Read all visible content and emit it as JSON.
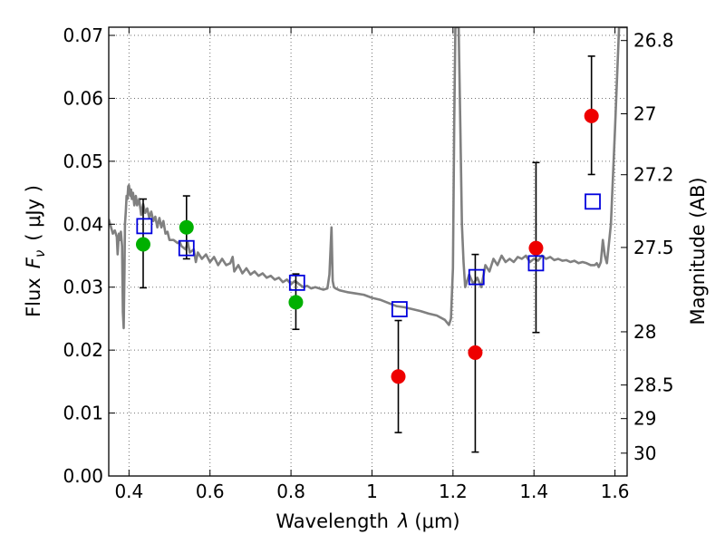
{
  "chart_data": {
    "type": "scatter",
    "xlabel_text": "Wavelength",
    "xlabel_symbol": "λ",
    "xlabel_unit": "(μm)",
    "ylabel_text": "Flux",
    "ylabel_symbol": "F",
    "ylabel_subscript": "ν",
    "ylabel_unit": "( μJy )",
    "y2label": "Magnitude (AB)",
    "xlim": [
      0.35,
      1.63
    ],
    "ylim": [
      0.0,
      0.0713
    ],
    "grid": true,
    "x_ticks": [
      {
        "value": 0.4,
        "label": "0.4"
      },
      {
        "value": 0.6,
        "label": "0.6"
      },
      {
        "value": 0.8,
        "label": "0.8"
      },
      {
        "value": 1.0,
        "label": "1"
      },
      {
        "value": 1.2,
        "label": "1.2"
      },
      {
        "value": 1.4,
        "label": "1.4"
      },
      {
        "value": 1.6,
        "label": "1.6"
      }
    ],
    "y_ticks": [
      {
        "value": 0.0,
        "label": "0.00"
      },
      {
        "value": 0.01,
        "label": "0.01"
      },
      {
        "value": 0.02,
        "label": "0.02"
      },
      {
        "value": 0.03,
        "label": "0.03"
      },
      {
        "value": 0.04,
        "label": "0.04"
      },
      {
        "value": 0.05,
        "label": "0.05"
      },
      {
        "value": 0.06,
        "label": "0.06"
      },
      {
        "value": 0.07,
        "label": "0.07"
      }
    ],
    "y2_ticks": [
      {
        "magnitude": 26.8,
        "label": "26.8"
      },
      {
        "magnitude": 27.0,
        "label": "27"
      },
      {
        "magnitude": 27.2,
        "label": "27.2"
      },
      {
        "magnitude": 27.5,
        "label": "27.5"
      },
      {
        "magnitude": 28.0,
        "label": "28"
      },
      {
        "magnitude": 28.5,
        "label": "28.5"
      },
      {
        "magnitude": 29.0,
        "label": "29"
      },
      {
        "magnitude": 30.0,
        "label": "30"
      }
    ],
    "colors": {
      "template": "#808080",
      "observed_green": "#00b000",
      "observed_red": "#ee0000",
      "model": "#0000dd",
      "errorbar": "#000000"
    },
    "series": [
      {
        "kind": "template-spectrum",
        "x": [
          0.35,
          0.36,
          0.365,
          0.37,
          0.372,
          0.375,
          0.378,
          0.38,
          0.383,
          0.385,
          0.387,
          0.389,
          0.39,
          0.392,
          0.394,
          0.396,
          0.398,
          0.4,
          0.403,
          0.405,
          0.407,
          0.41,
          0.413,
          0.417,
          0.42,
          0.425,
          0.43,
          0.435,
          0.44,
          0.445,
          0.45,
          0.455,
          0.46,
          0.465,
          0.47,
          0.475,
          0.48,
          0.485,
          0.49,
          0.495,
          0.5,
          0.51,
          0.52,
          0.525,
          0.53,
          0.54,
          0.545,
          0.55,
          0.56,
          0.565,
          0.57,
          0.58,
          0.59,
          0.6,
          0.61,
          0.62,
          0.63,
          0.64,
          0.65,
          0.656,
          0.66,
          0.67,
          0.68,
          0.69,
          0.7,
          0.71,
          0.72,
          0.73,
          0.74,
          0.75,
          0.76,
          0.77,
          0.78,
          0.79,
          0.8,
          0.81,
          0.82,
          0.83,
          0.84,
          0.85,
          0.86,
          0.87,
          0.88,
          0.89,
          0.895,
          0.9,
          0.903,
          0.906,
          0.91,
          0.92,
          0.94,
          0.96,
          0.98,
          1.0,
          1.02,
          1.04,
          1.06,
          1.08,
          1.1,
          1.12,
          1.14,
          1.16,
          1.18,
          1.19,
          1.195,
          1.2,
          1.203,
          1.206,
          1.21,
          1.214,
          1.218,
          1.222,
          1.226,
          1.23,
          1.24,
          1.25,
          1.26,
          1.27,
          1.28,
          1.29,
          1.3,
          1.31,
          1.32,
          1.33,
          1.34,
          1.35,
          1.36,
          1.37,
          1.38,
          1.39,
          1.4,
          1.41,
          1.42,
          1.43,
          1.44,
          1.45,
          1.46,
          1.47,
          1.48,
          1.49,
          1.5,
          1.51,
          1.52,
          1.53,
          1.54,
          1.55,
          1.555,
          1.56,
          1.565,
          1.57,
          1.575,
          1.58,
          1.59,
          1.6,
          1.61,
          1.62,
          1.63
        ],
        "y": [
          0.0408,
          0.0385,
          0.039,
          0.038,
          0.0352,
          0.0385,
          0.0375,
          0.0388,
          0.0365,
          0.026,
          0.0235,
          0.033,
          0.04,
          0.042,
          0.0445,
          0.044,
          0.046,
          0.0462,
          0.0445,
          0.0455,
          0.044,
          0.045,
          0.043,
          0.0445,
          0.043,
          0.044,
          0.0415,
          0.0432,
          0.0418,
          0.0425,
          0.041,
          0.042,
          0.0405,
          0.0412,
          0.0395,
          0.041,
          0.0395,
          0.0405,
          0.0385,
          0.0388,
          0.0375,
          0.0375,
          0.037,
          0.0372,
          0.0365,
          0.036,
          0.0372,
          0.0355,
          0.036,
          0.034,
          0.0355,
          0.0345,
          0.0352,
          0.034,
          0.0348,
          0.0335,
          0.0345,
          0.0335,
          0.0338,
          0.0348,
          0.0325,
          0.0335,
          0.0322,
          0.033,
          0.032,
          0.0325,
          0.0318,
          0.0322,
          0.0315,
          0.0318,
          0.0312,
          0.0315,
          0.0308,
          0.0312,
          0.0305,
          0.031,
          0.0305,
          0.03,
          0.0302,
          0.0298,
          0.03,
          0.0298,
          0.0296,
          0.0298,
          0.032,
          0.0395,
          0.031,
          0.03,
          0.0298,
          0.0295,
          0.0292,
          0.029,
          0.0288,
          0.0283,
          0.028,
          0.0275,
          0.027,
          0.0268,
          0.0265,
          0.0262,
          0.0258,
          0.0255,
          0.0248,
          0.024,
          0.025,
          0.033,
          0.056,
          0.0713,
          0.0713,
          0.0713,
          0.056,
          0.04,
          0.034,
          0.03,
          0.032,
          0.0305,
          0.0315,
          0.03,
          0.0335,
          0.0325,
          0.0345,
          0.0335,
          0.035,
          0.034,
          0.0345,
          0.034,
          0.0348,
          0.0345,
          0.035,
          0.034,
          0.0345,
          0.0342,
          0.035,
          0.0345,
          0.0348,
          0.0343,
          0.0345,
          0.0342,
          0.0343,
          0.034,
          0.0342,
          0.0338,
          0.034,
          0.0338,
          0.0335,
          0.0335,
          0.0338,
          0.0332,
          0.034,
          0.0375,
          0.035,
          0.0338,
          0.04,
          0.055,
          0.0713,
          0.0713,
          0.0713
        ]
      },
      {
        "kind": "observed-green",
        "points": [
          {
            "x": 0.435,
            "y": 0.0368
          },
          {
            "x": 0.542,
            "y": 0.0395
          },
          {
            "x": 0.812,
            "y": 0.0276
          }
        ]
      },
      {
        "kind": "observed-red",
        "points": [
          {
            "x": 1.065,
            "y": 0.0158
          },
          {
            "x": 1.255,
            "y": 0.0196
          },
          {
            "x": 1.405,
            "y": 0.0362
          },
          {
            "x": 1.542,
            "y": 0.0572
          }
        ]
      },
      {
        "kind": "model-squares",
        "points": [
          {
            "x": 0.438,
            "y": 0.0397
          },
          {
            "x": 0.542,
            "y": 0.0362
          },
          {
            "x": 0.815,
            "y": 0.0307
          },
          {
            "x": 1.068,
            "y": 0.0265
          },
          {
            "x": 1.258,
            "y": 0.0316
          },
          {
            "x": 1.405,
            "y": 0.0338
          },
          {
            "x": 1.545,
            "y": 0.0436
          }
        ]
      },
      {
        "kind": "error-bars",
        "bars": [
          {
            "x": 0.435,
            "low": 0.0299,
            "high": 0.044
          },
          {
            "x": 0.542,
            "low": 0.0345,
            "high": 0.0445
          },
          {
            "x": 0.812,
            "low": 0.0233,
            "high": 0.0321
          },
          {
            "x": 1.065,
            "low": 0.0069,
            "high": 0.0247
          },
          {
            "x": 1.255,
            "low": 0.0038,
            "high": 0.0352
          },
          {
            "x": 1.405,
            "low": 0.0228,
            "high": 0.0498
          },
          {
            "x": 1.542,
            "low": 0.0479,
            "high": 0.0667
          }
        ]
      }
    ]
  }
}
